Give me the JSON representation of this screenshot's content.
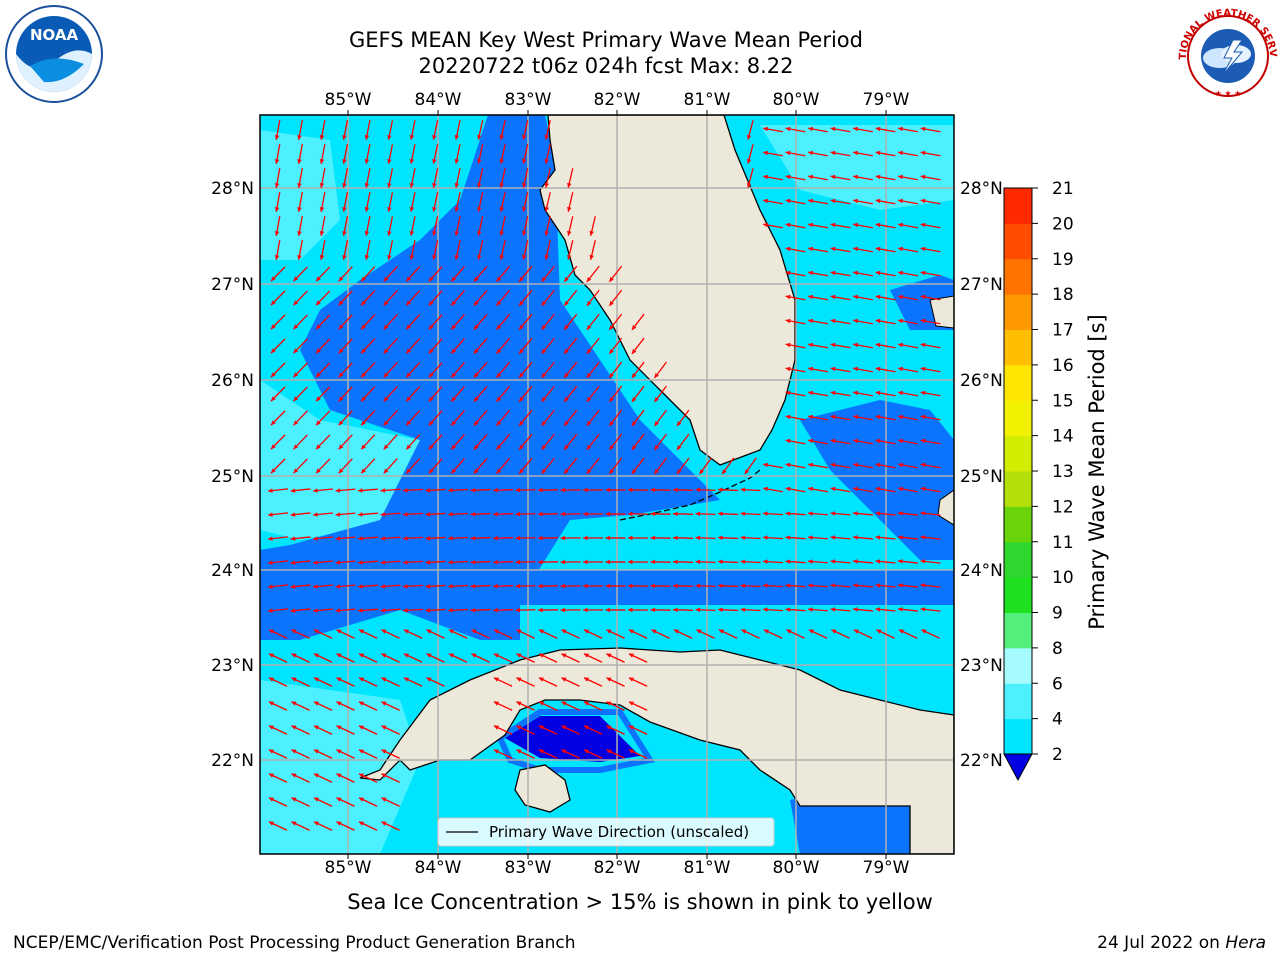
{
  "title_line1": "GEFS MEAN Key West Primary Wave Mean Period",
  "title_line2": "20220722 t06z 024h fcst   Max: 8.22",
  "lon_labels": [
    "85°W",
    "84°W",
    "83°W",
    "82°W",
    "81°W",
    "80°W",
    "79°W"
  ],
  "lat_labels": [
    "28°N",
    "27°N",
    "26°N",
    "25°N",
    "24°N",
    "23°N",
    "22°N"
  ],
  "legend_label": "Primary Wave Direction (unscaled)",
  "colorbar": {
    "label": "Primary Wave Mean Period [s]",
    "ticks": [
      "2",
      "4",
      "6",
      "8",
      "9",
      "10",
      "11",
      "12",
      "13",
      "14",
      "15",
      "16",
      "17",
      "18",
      "19",
      "20",
      "21"
    ],
    "colors": [
      "#0a74ff",
      "#00e5ff",
      "#4df0ff",
      "#a6fbff",
      "#55f07c",
      "#1ee01e",
      "#2ed62e",
      "#6ad40a",
      "#b4e00a",
      "#d4ec00",
      "#f2f200",
      "#ffe600",
      "#ffbf00",
      "#ff9900",
      "#ff7300",
      "#ff4d00",
      "#ff2a00",
      "#ff0000"
    ]
  },
  "ice_note": "Sea Ice Concentration > 15% is shown in pink to yellow",
  "credit": "NCEP/EMC/Verification Post Processing Product Generation Branch",
  "date_text": "24 Jul 2022 on ",
  "host": "Hera",
  "logos": {
    "left": "NOAA",
    "right": "NATIONAL WEATHER SERVICE"
  },
  "colors": {
    "land": "#ede9da",
    "grid": "#b0b0b0",
    "arrow": "#ff0000",
    "dark_blue": "#0a74ff",
    "cyan": "#00e5ff",
    "light_cyan": "#4df0ff",
    "deep_blue": "#0000e0"
  }
}
